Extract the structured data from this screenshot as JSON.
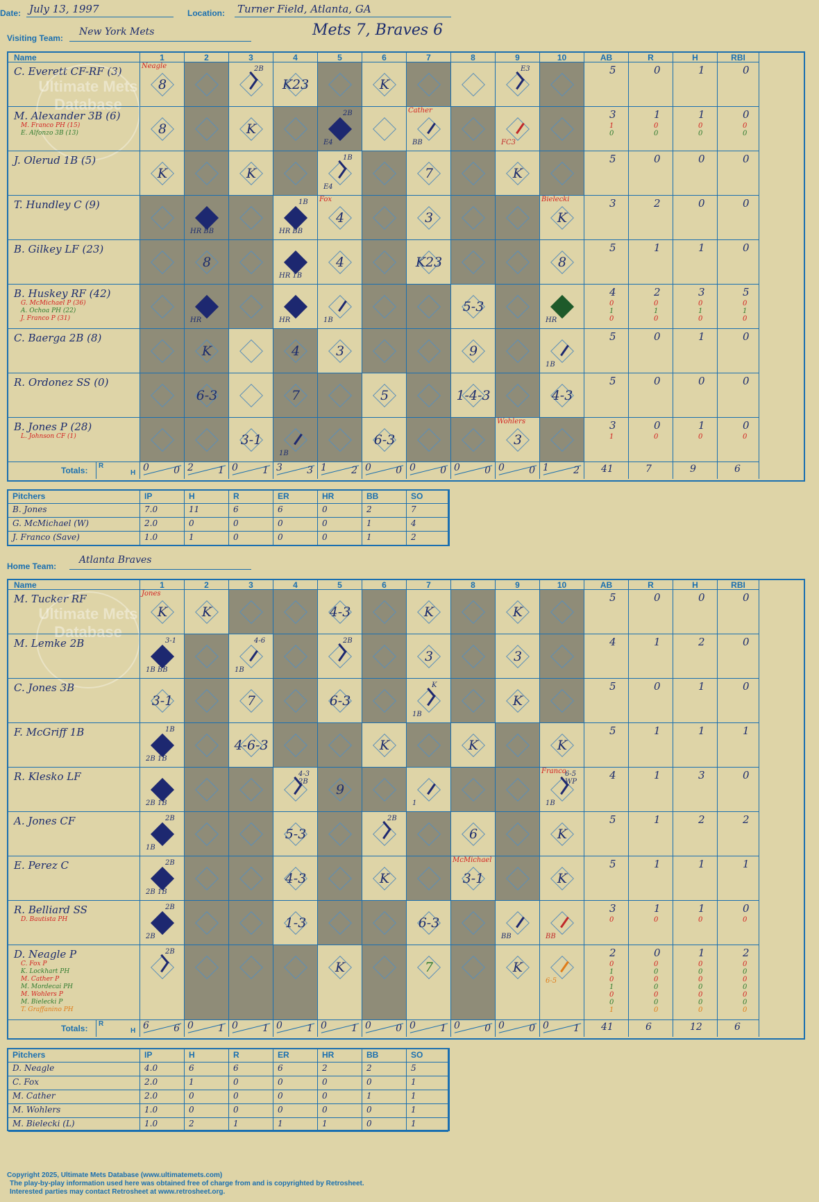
{
  "header": {
    "date_label": "Date:",
    "date": "July 13, 1997",
    "location_label": "Location:",
    "location": "Turner Field, Atlanta, GA",
    "visiting_label": "Visiting Team:",
    "visiting_team": "New York Mets",
    "title": "Mets 7, Braves 6",
    "home_label": "Home Team:",
    "home_team": "Atlanta Braves"
  },
  "columns": {
    "name": "Name",
    "innings": [
      "1",
      "2",
      "3",
      "4",
      "5",
      "6",
      "7",
      "8",
      "9",
      "10"
    ],
    "stats": [
      "AB",
      "R",
      "H",
      "RBI"
    ]
  },
  "totals_label": "Totals:",
  "rh": {
    "r": "R",
    "h": "H"
  },
  "watermark": "Ultimate Mets Database",
  "watermark_url": "ultimatemets.com",
  "visitors": {
    "players": [
      {
        "name": "C. Everett CF-RF (3)",
        "subs": [],
        "stats": [
          "5",
          "0",
          "1",
          "0"
        ],
        "substats": []
      },
      {
        "name": "M. Alexander 3B (6)",
        "subs": [
          {
            "text": "M. Franco PH (15)",
            "color": "#d21f1f"
          },
          {
            "text": "E. Alfonzo 3B (13)",
            "color": "#2e7a2e"
          }
        ],
        "stats": [
          "3",
          "1",
          "1",
          "0"
        ],
        "substats": [
          {
            "v": [
              "1",
              "0",
              "0",
              "0"
            ],
            "color": "#d21f1f"
          },
          {
            "v": [
              "0",
              "0",
              "0",
              "0"
            ],
            "color": "#2e7a2e"
          }
        ]
      },
      {
        "name": "J. Olerud 1B (5)",
        "subs": [],
        "stats": [
          "5",
          "0",
          "0",
          "0"
        ],
        "substats": []
      },
      {
        "name": "T. Hundley C (9)",
        "subs": [],
        "stats": [
          "3",
          "2",
          "0",
          "0"
        ],
        "substats": []
      },
      {
        "name": "B. Gilkey LF (23)",
        "subs": [],
        "stats": [
          "5",
          "1",
          "1",
          "0"
        ],
        "substats": []
      },
      {
        "name": "B. Huskey RF (42)",
        "subs": [
          {
            "text": "G. McMichael P (36)",
            "color": "#d21f1f"
          },
          {
            "text": "A. Ochoa PH (22)",
            "color": "#2e7a2e"
          },
          {
            "text": "J. Franco P (31)",
            "color": "#d21f1f"
          }
        ],
        "stats": [
          "4",
          "2",
          "3",
          "5"
        ],
        "substats": [
          {
            "v": [
              "0",
              "0",
              "0",
              "0"
            ],
            "color": "#d21f1f"
          },
          {
            "v": [
              "1",
              "1",
              "1",
              "1"
            ],
            "color": "#2e7a2e"
          },
          {
            "v": [
              "0",
              "0",
              "0",
              "0"
            ],
            "color": "#d21f1f"
          }
        ]
      },
      {
        "name": "C. Baerga 2B (8)",
        "subs": [],
        "stats": [
          "5",
          "0",
          "1",
          "0"
        ],
        "substats": []
      },
      {
        "name": "R. Ordonez SS (0)",
        "subs": [],
        "stats": [
          "5",
          "0",
          "0",
          "0"
        ],
        "substats": []
      },
      {
        "name": "B. Jones P (28)",
        "subs": [
          {
            "text": "L. Johnson CF (1)",
            "color": "#d21f1f"
          }
        ],
        "stats": [
          "3",
          "0",
          "1",
          "0"
        ],
        "substats": [
          {
            "v": [
              "1",
              "0",
              "0",
              "0"
            ],
            "color": "#d21f1f"
          }
        ]
      }
    ],
    "cells": [
      [
        {
          "r": "8",
          "n": "Neagle"
        },
        null,
        {
          "d": "hit",
          "t": "2B"
        },
        {
          "r": "K23"
        },
        null,
        {
          "r": "K"
        },
        null,
        null,
        {
          "d": "hit",
          "t": "E3"
        },
        null
      ],
      [
        {
          "r": "8"
        },
        null,
        {
          "r": "K"
        },
        null,
        {
          "d": "filled",
          "t": "2B",
          "b": "E4"
        },
        null,
        {
          "d": "walk",
          "n": "Cather",
          "b": "BB"
        },
        null,
        {
          "d": "fc",
          "b": "FC3"
        },
        null
      ],
      [
        {
          "r": "K"
        },
        null,
        {
          "r": "K"
        },
        null,
        {
          "d": "hit",
          "t": "1B",
          "b": "E4"
        },
        null,
        {
          "r": "7"
        },
        null,
        {
          "r": "K"
        },
        null
      ],
      [
        null,
        {
          "d": "filled",
          "b": "HR BB"
        },
        null,
        {
          "d": "filled",
          "t": "1B",
          "b": "HR BB"
        },
        {
          "r": "4",
          "n": "Fox"
        },
        null,
        {
          "r": "3"
        },
        null,
        null,
        {
          "r": "K",
          "n": "Bielecki"
        }
      ],
      [
        null,
        {
          "r": "8"
        },
        null,
        {
          "d": "filled",
          "b": "HR 1B"
        },
        {
          "r": "4"
        },
        null,
        {
          "r": "K23"
        },
        null,
        null,
        {
          "r": "8"
        }
      ],
      [
        null,
        {
          "d": "filled",
          "b": "HR"
        },
        null,
        {
          "d": "filled",
          "b": "HR"
        },
        {
          "d": "walk",
          "b": "1B"
        },
        null,
        null,
        {
          "r": "5-3"
        },
        null,
        {
          "d": "green",
          "b": "HR"
        }
      ],
      [
        null,
        {
          "r": "K"
        },
        null,
        {
          "r": "4"
        },
        {
          "r": "3"
        },
        null,
        null,
        {
          "r": "9"
        },
        null,
        {
          "d": "walk",
          "b": "1B"
        }
      ],
      [
        null,
        {
          "r": "6-3"
        },
        null,
        {
          "r": "7"
        },
        null,
        {
          "r": "5"
        },
        null,
        {
          "r": "1-4-3"
        },
        null,
        {
          "r": "4-3"
        }
      ],
      [
        null,
        null,
        {
          "r": "3-1"
        },
        {
          "d": "walk",
          "b": "1B"
        },
        null,
        {
          "r": "6-3"
        },
        null,
        null,
        {
          "r": "3",
          "n": "Wohlers"
        },
        null
      ]
    ],
    "gray": [
      [
        0,
        1,
        0,
        0,
        1,
        0,
        1,
        0,
        0,
        1
      ],
      [
        0,
        1,
        0,
        1,
        1,
        0,
        0,
        1,
        0,
        1
      ],
      [
        0,
        1,
        0,
        1,
        0,
        1,
        0,
        1,
        0,
        1
      ],
      [
        1,
        1,
        1,
        0,
        0,
        1,
        0,
        1,
        1,
        0
      ],
      [
        1,
        1,
        1,
        0,
        0,
        1,
        0,
        1,
        1,
        0
      ],
      [
        1,
        1,
        1,
        0,
        0,
        1,
        1,
        0,
        1,
        0
      ],
      [
        1,
        1,
        0,
        1,
        0,
        1,
        1,
        0,
        1,
        0
      ],
      [
        1,
        1,
        0,
        1,
        1,
        0,
        1,
        0,
        1,
        0
      ],
      [
        1,
        1,
        0,
        1,
        1,
        0,
        1,
        1,
        0,
        1
      ]
    ],
    "totals": [
      [
        "0",
        "0"
      ],
      [
        "2",
        "1"
      ],
      [
        "0",
        "1"
      ],
      [
        "3",
        "3"
      ],
      [
        "1",
        "2"
      ],
      [
        "0",
        "0"
      ],
      [
        "0",
        "0"
      ],
      [
        "0",
        "0"
      ],
      [
        "0",
        "0"
      ],
      [
        "1",
        "2"
      ]
    ],
    "game_totals": [
      "41",
      "7",
      "9",
      "6"
    ]
  },
  "visitor_pitchers": {
    "headers": [
      "Pitchers",
      "IP",
      "H",
      "R",
      "ER",
      "HR",
      "BB",
      "SO"
    ],
    "rows": [
      [
        "B. Jones",
        "7.0",
        "11",
        "6",
        "6",
        "0",
        "2",
        "7"
      ],
      [
        "G. McMichael (W)",
        "2.0",
        "0",
        "0",
        "0",
        "0",
        "1",
        "4"
      ],
      [
        "J. Franco (Save)",
        "1.0",
        "1",
        "0",
        "0",
        "0",
        "1",
        "2"
      ]
    ]
  },
  "home": {
    "players": [
      {
        "name": "M. Tucker RF",
        "subs": [],
        "stats": [
          "5",
          "0",
          "0",
          "0"
        ],
        "substats": []
      },
      {
        "name": "M. Lemke 2B",
        "subs": [],
        "stats": [
          "4",
          "1",
          "2",
          "0"
        ],
        "substats": []
      },
      {
        "name": "C. Jones 3B",
        "subs": [],
        "stats": [
          "5",
          "0",
          "1",
          "0"
        ],
        "substats": []
      },
      {
        "name": "F. McGriff 1B",
        "subs": [],
        "stats": [
          "5",
          "1",
          "1",
          "1"
        ],
        "substats": []
      },
      {
        "name": "R. Klesko LF",
        "subs": [],
        "stats": [
          "4",
          "1",
          "3",
          "0"
        ],
        "substats": []
      },
      {
        "name": "A. Jones CF",
        "subs": [],
        "stats": [
          "5",
          "1",
          "2",
          "2"
        ],
        "substats": []
      },
      {
        "name": "E. Perez C",
        "subs": [],
        "stats": [
          "5",
          "1",
          "1",
          "1"
        ],
        "substats": []
      },
      {
        "name": "R. Belliard SS",
        "subs": [
          {
            "text": "D. Bautista PH",
            "color": "#d21f1f"
          }
        ],
        "stats": [
          "3",
          "1",
          "1",
          "0"
        ],
        "substats": [
          {
            "v": [
              "0",
              "0",
              "0",
              "0"
            ],
            "color": "#d21f1f"
          }
        ]
      },
      {
        "name": "D. Neagle P",
        "subs": [
          {
            "text": "C. Fox P",
            "color": "#d21f1f"
          },
          {
            "text": "K. Lockhart PH",
            "color": "#2e7a2e"
          },
          {
            "text": "M. Cather P",
            "color": "#d21f1f"
          },
          {
            "text": "M. Mordecai PH",
            "color": "#2e7a2e"
          },
          {
            "text": "M. Wohlers P",
            "color": "#d21f1f"
          },
          {
            "text": "M. Bielecki P",
            "color": "#2e7a2e"
          },
          {
            "text": "T. Graffanino PH",
            "color": "#e07b18"
          }
        ],
        "stats": [
          "2",
          "0",
          "1",
          "2"
        ],
        "substats": [
          {
            "v": [
              "0",
              "0",
              "0",
              "0"
            ],
            "color": "#d21f1f"
          },
          {
            "v": [
              "1",
              "0",
              "0",
              "0"
            ],
            "color": "#2e7a2e"
          },
          {
            "v": [
              "0",
              "0",
              "0",
              "0"
            ],
            "color": "#d21f1f"
          },
          {
            "v": [
              "1",
              "0",
              "0",
              "0"
            ],
            "color": "#2e7a2e"
          },
          {
            "v": [
              "0",
              "0",
              "0",
              "0"
            ],
            "color": "#d21f1f"
          },
          {
            "v": [
              "0",
              "0",
              "0",
              "0"
            ],
            "color": "#2e7a2e"
          },
          {
            "v": [
              "1",
              "0",
              "0",
              "0"
            ],
            "color": "#e07b18"
          }
        ]
      }
    ],
    "cells": [
      [
        {
          "r": "K",
          "n": "Jones"
        },
        {
          "r": "K"
        },
        null,
        null,
        {
          "r": "4-3"
        },
        null,
        {
          "r": "K"
        },
        null,
        {
          "r": "K"
        },
        null
      ],
      [
        {
          "d": "filled",
          "t": "3-1",
          "b": "1B BB"
        },
        null,
        {
          "d": "walk",
          "t": "4-6",
          "b": "1B"
        },
        null,
        {
          "d": "hit",
          "t": "2B"
        },
        null,
        {
          "r": "3"
        },
        null,
        {
          "r": "3"
        },
        null
      ],
      [
        {
          "r": "3-1"
        },
        null,
        {
          "r": "7"
        },
        null,
        {
          "r": "6-3"
        },
        null,
        {
          "d": "hit",
          "t": "K",
          "b": "1B"
        },
        null,
        {
          "r": "K"
        },
        null
      ],
      [
        {
          "d": "filled",
          "t": "1B",
          "b": "2B 1B"
        },
        null,
        {
          "r": "4-6-3"
        },
        null,
        null,
        {
          "r": "K"
        },
        null,
        {
          "r": "K"
        },
        null,
        {
          "r": "K"
        }
      ],
      [
        {
          "d": "filled",
          "b": "2B 1B"
        },
        null,
        null,
        {
          "d": "hit",
          "t": "4-3 2B"
        },
        {
          "r": "9"
        },
        null,
        {
          "d": "walk",
          "b": "1"
        },
        null,
        null,
        {
          "d": "hit",
          "t": "6-5 WP",
          "n": "Franco",
          "b": "1B"
        }
      ],
      [
        {
          "d": "filled",
          "t": "2B",
          "b": "1B"
        },
        null,
        null,
        {
          "r": "5-3"
        },
        null,
        {
          "d": "hit",
          "t": "2B"
        },
        null,
        {
          "r": "6"
        },
        null,
        {
          "r": "K"
        }
      ],
      [
        {
          "d": "filled",
          "t": "2B",
          "b": "2B 1B"
        },
        null,
        null,
        {
          "r": "4-3"
        },
        null,
        {
          "r": "K"
        },
        null,
        {
          "r": "3-1",
          "n": "McMichael"
        },
        null,
        {
          "r": "K"
        }
      ],
      [
        {
          "d": "filled",
          "t": "2B",
          "b": "2B"
        },
        null,
        null,
        {
          "r": "1-3"
        },
        null,
        null,
        {
          "r": "6-3"
        },
        null,
        {
          "d": "walk",
          "b": "BB"
        },
        {
          "d": "red",
          "b": "BB"
        }
      ],
      [
        {
          "d": "hit",
          "t": "2B"
        },
        null,
        null,
        null,
        {
          "r": "K"
        },
        null,
        {
          "r": "7",
          "g": true
        },
        null,
        {
          "r": "K"
        },
        {
          "d": "orange",
          "b": "6-5"
        }
      ]
    ],
    "gray": [
      [
        0,
        0,
        1,
        1,
        0,
        1,
        0,
        1,
        0,
        1
      ],
      [
        0,
        1,
        0,
        1,
        0,
        1,
        0,
        1,
        0,
        1
      ],
      [
        0,
        1,
        0,
        1,
        0,
        1,
        0,
        1,
        0,
        1
      ],
      [
        0,
        1,
        0,
        1,
        1,
        0,
        1,
        0,
        1,
        0
      ],
      [
        0,
        1,
        1,
        0,
        1,
        1,
        0,
        1,
        1,
        0
      ],
      [
        0,
        1,
        1,
        0,
        1,
        0,
        1,
        0,
        1,
        0
      ],
      [
        0,
        1,
        1,
        0,
        1,
        0,
        1,
        0,
        1,
        0
      ],
      [
        0,
        1,
        1,
        0,
        1,
        1,
        0,
        1,
        0,
        0
      ],
      [
        0,
        1,
        1,
        1,
        0,
        1,
        0,
        1,
        0,
        0
      ]
    ],
    "totals": [
      [
        "6",
        "6"
      ],
      [
        "0",
        "1"
      ],
      [
        "0",
        "1"
      ],
      [
        "0",
        "1"
      ],
      [
        "0",
        "1"
      ],
      [
        "0",
        "0"
      ],
      [
        "0",
        "1"
      ],
      [
        "0",
        "0"
      ],
      [
        "0",
        "0"
      ],
      [
        "0",
        "1"
      ]
    ],
    "game_totals": [
      "41",
      "6",
      "12",
      "6"
    ]
  },
  "home_pitchers": {
    "headers": [
      "Pitchers",
      "IP",
      "H",
      "R",
      "ER",
      "HR",
      "BB",
      "SO"
    ],
    "rows": [
      [
        "D. Neagle",
        "4.0",
        "6",
        "6",
        "6",
        "2",
        "2",
        "5"
      ],
      [
        "C. Fox",
        "2.0",
        "1",
        "0",
        "0",
        "0",
        "0",
        "1"
      ],
      [
        "M. Cather",
        "2.0",
        "0",
        "0",
        "0",
        "0",
        "1",
        "1"
      ],
      [
        "M. Wohlers",
        "1.0",
        "0",
        "0",
        "0",
        "0",
        "0",
        "1"
      ],
      [
        "M. Bielecki (L)",
        "1.0",
        "2",
        "1",
        "1",
        "1",
        "0",
        "1"
      ]
    ]
  },
  "footer": {
    "line1": "Copyright 2025, Ultimate Mets Database (www.ultimatemets.com)",
    "line2": "The play-by-play information used here was obtained free of charge from and is copyrighted by Retrosheet.",
    "line3": "Interested parties may contact Retrosheet at www.retrosheet.org."
  },
  "colors": {
    "background": "#ded4a7",
    "line": "#1a6fb0",
    "ink": "#1c2c6e",
    "gray_cell": "#8f8c78",
    "filled_base": "#1d2870"
  }
}
